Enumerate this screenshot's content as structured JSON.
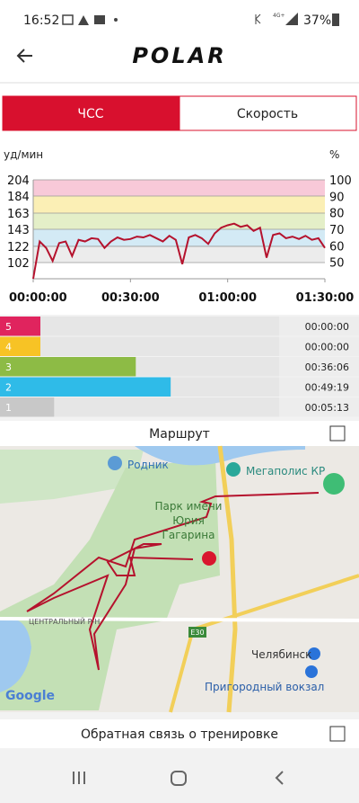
{
  "status_bar": {
    "time": "16:52",
    "network": "4G+",
    "battery": "37%"
  },
  "header": {
    "logo": "POLAR"
  },
  "tabs": {
    "items": [
      "ЧСС",
      "Скорость"
    ],
    "active": 0
  },
  "chart_data": {
    "type": "line",
    "y_label": "уд/мин",
    "y2_label": "%",
    "ylim": [
      82,
      204
    ],
    "yticks": [
      102,
      122,
      143,
      163,
      184,
      204
    ],
    "y2lim": [
      40,
      100
    ],
    "y2ticks": [
      50,
      60,
      70,
      80,
      90,
      100
    ],
    "xlim": [
      0,
      90
    ],
    "xticks": [
      {
        "value": 0,
        "label": "00:00:00"
      },
      {
        "value": 30,
        "label": "00:30:00"
      },
      {
        "value": 60,
        "label": "01:00:00"
      },
      {
        "value": 90,
        "label": "01:30:00"
      }
    ],
    "zone_colors": [
      "#ececec",
      "#d3eaf5",
      "#e4efc8",
      "#fbefb5",
      "#f8c9d8"
    ],
    "grid": true,
    "series": [
      {
        "name": "ЧСС",
        "color": "#b5122d",
        "x": [
          0,
          2,
          4,
          6,
          8,
          10,
          12,
          14,
          16,
          18,
          20,
          22,
          24,
          26,
          28,
          30,
          32,
          34,
          36,
          38,
          40,
          42,
          44,
          46,
          48,
          50,
          52,
          54,
          56,
          58,
          60,
          62,
          64,
          66,
          68,
          70,
          72,
          74,
          76,
          78,
          80,
          82,
          84,
          86,
          88,
          90
        ],
        "values": [
          82,
          128,
          120,
          104,
          126,
          128,
          110,
          130,
          128,
          132,
          131,
          120,
          128,
          133,
          130,
          131,
          134,
          133,
          136,
          132,
          128,
          135,
          130,
          100,
          133,
          136,
          132,
          125,
          138,
          145,
          148,
          150,
          146,
          148,
          141,
          145,
          108,
          136,
          138,
          132,
          134,
          131,
          135,
          130,
          132,
          120
        ]
      }
    ]
  },
  "zones": {
    "xlim": [
      0,
      90
    ],
    "rows": [
      {
        "label": "5",
        "color": "#e0245e",
        "value": 0,
        "time": "00:00:00"
      },
      {
        "label": "4",
        "color": "#f7c325",
        "value": 0,
        "time": "00:00:00"
      },
      {
        "label": "3",
        "color": "#8dbb45",
        "value": 36.1,
        "time": "00:36:06"
      },
      {
        "label": "2",
        "color": "#2fbbe8",
        "value": 49.3,
        "time": "00:49:19"
      },
      {
        "label": "1",
        "color": "#c8c8c8",
        "value": 5.2,
        "time": "00:05:13"
      }
    ]
  },
  "route": {
    "title": "Маршрут",
    "map_labels": [
      "Родник",
      "Мегаполис КР",
      "Парк имени",
      "Юрия",
      "Гагарина",
      "ЦЕНТРАЛЬНЫЙ Р-Н",
      "E30",
      "Челябинск",
      "Пригородный вокзал",
      "Google"
    ]
  },
  "feedback": {
    "title": "Обратная связь о тренировке"
  }
}
